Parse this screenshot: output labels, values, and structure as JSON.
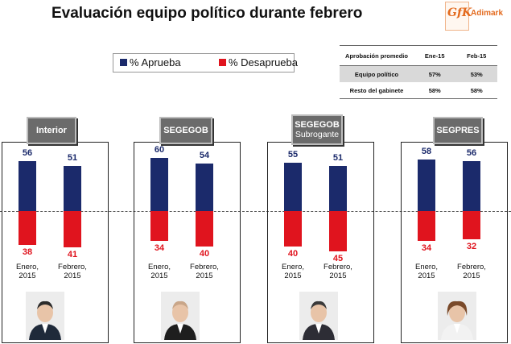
{
  "title": "Evaluación equipo político durante febrero",
  "logo": {
    "brand": "GfK",
    "partner": "Adimark"
  },
  "legend": {
    "approve": "% Aprueba",
    "disapprove": "% Desaprueba"
  },
  "colors": {
    "approve": "#1b2a6b",
    "disapprove": "#e0141e"
  },
  "summary_table": {
    "header": [
      "Aprobación promedio",
      "Ene-15",
      "Feb-15"
    ],
    "rows": [
      [
        "Equipo político",
        "57%",
        "53%"
      ],
      [
        "Resto del gabinete",
        "58%",
        "58%"
      ]
    ]
  },
  "chart_data": {
    "type": "bar",
    "title": "Evaluación equipo político durante febrero",
    "categories": [
      "Enero, 2015",
      "Febrero, 2015"
    ],
    "panels": [
      {
        "name": "Interior",
        "subtitle": "",
        "aprueba": [
          56,
          51
        ],
        "desaprueba": [
          38,
          41
        ]
      },
      {
        "name": "SEGEGOB",
        "subtitle": "",
        "aprueba": [
          60,
          54
        ],
        "desaprueba": [
          34,
          40
        ]
      },
      {
        "name": "SEGEGOB",
        "subtitle": "Subrogante",
        "aprueba": [
          55,
          51
        ],
        "desaprueba": [
          40,
          45
        ]
      },
      {
        "name": "SEGPRES",
        "subtitle": "",
        "aprueba": [
          58,
          56
        ],
        "desaprueba": [
          34,
          32
        ]
      }
    ],
    "series": [
      {
        "name": "% Aprueba"
      },
      {
        "name": "% Desaprueba"
      }
    ],
    "category_labels": [
      [
        "Enero,",
        "2015"
      ],
      [
        "Febrero,",
        "2015"
      ]
    ]
  }
}
